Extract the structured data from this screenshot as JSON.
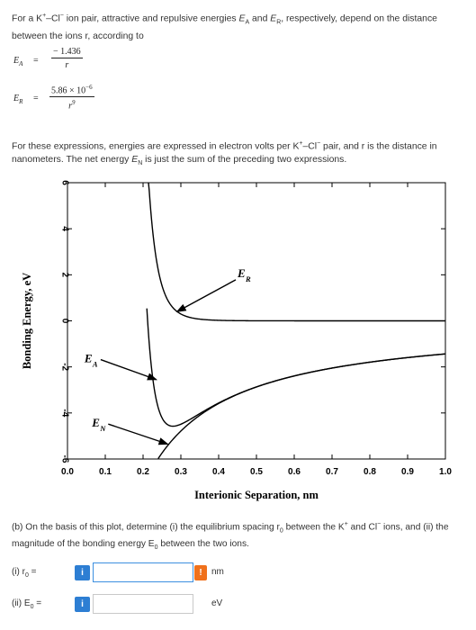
{
  "intro": {
    "p1": "For a K",
    "p2": "+",
    "p3": "–Cl",
    "p4": "−",
    "p5": " ion pair, attractive and repulsive energies ",
    "p6": "E",
    "p7": "A",
    "p8": " and ",
    "p9": "E",
    "p10": "R",
    "p11": ", respectively, depend on the distance between the ions r, according to"
  },
  "formulas": {
    "ea_lhs": "E",
    "ea_sub": "A",
    "ea_eq": "=",
    "ea_num": "− 1.436",
    "ea_den": "r",
    "er_lhs": "E",
    "er_sub": "R",
    "er_eq": "=",
    "er_num": "5.86 × 10",
    "er_num_exp": "−6",
    "er_den": "r",
    "er_den_exp": "9"
  },
  "paragraph": {
    "p1": "For these expressions, energies are expressed in electron volts per K",
    "p2": "+",
    "p3": "–Cl",
    "p4": "−",
    "p5": " pair, and r is the distance in nanometers. The net energy ",
    "p6": "E",
    "p7": "N",
    "p8": " is just the sum of the preceding two expressions."
  },
  "chart_data": {
    "type": "line",
    "xlabel": "Interionic Separation, nm",
    "ylabel": "Bonding Energy, eV",
    "xlim": [
      0,
      1.0
    ],
    "ylim": [
      -6,
      6
    ],
    "x_ticks": [
      "0.0",
      "0.1",
      "0.2",
      "0.3",
      "0.4",
      "0.5",
      "0.6",
      "0.7",
      "0.8",
      "0.9",
      "1.0"
    ],
    "y_ticks": [
      "-6",
      "-4",
      "-2",
      "0",
      "2",
      "4",
      "6"
    ],
    "grid": false,
    "series": [
      {
        "name": "E",
        "name_sub": "R",
        "a": 5.86e-06,
        "power": 9,
        "x_start": 0.19
      },
      {
        "name": "E",
        "name_sub": "A",
        "a": -1.436,
        "power": 1,
        "x_start": 0.24
      },
      {
        "name": "E",
        "name_sub": "N",
        "type": "sum",
        "x_start": 0.21
      }
    ],
    "annotations": [
      {
        "label": "E",
        "sub": "R",
        "label_x": 0.45,
        "label_y": 1.9,
        "arrow_to_x": 0.29,
        "arrow_to_y": 0.4
      },
      {
        "label": "E",
        "sub": "A",
        "label_x": 0.045,
        "label_y": -1.8,
        "arrow_to_x": 0.235,
        "arrow_to_y": -2.55
      },
      {
        "label": "E",
        "sub": "N",
        "label_x": 0.065,
        "label_y": -4.6,
        "arrow_to_x": 0.265,
        "arrow_to_y": -5.35
      }
    ]
  },
  "question": {
    "text": "(b) On the basis of this plot, determine (i) the equilibrium spacing r",
    "s1": "0",
    "t2": " between the K",
    "s2": "+",
    "t3": " and Cl",
    "s3": "−",
    "t4": " ions, and (ii) the magnitude of the bonding energy E",
    "s4": "0",
    "t5": " between the two ions."
  },
  "answers": {
    "r0": {
      "label_pre": "(i)   r",
      "label_sub": "0",
      "label_post": " =",
      "info": "i",
      "warn": "!",
      "unit": "nm",
      "value": ""
    },
    "e0": {
      "label_pre": "(ii)  E",
      "label_sub": "0",
      "label_post": " =",
      "info": "i",
      "unit": "eV",
      "value": ""
    }
  }
}
